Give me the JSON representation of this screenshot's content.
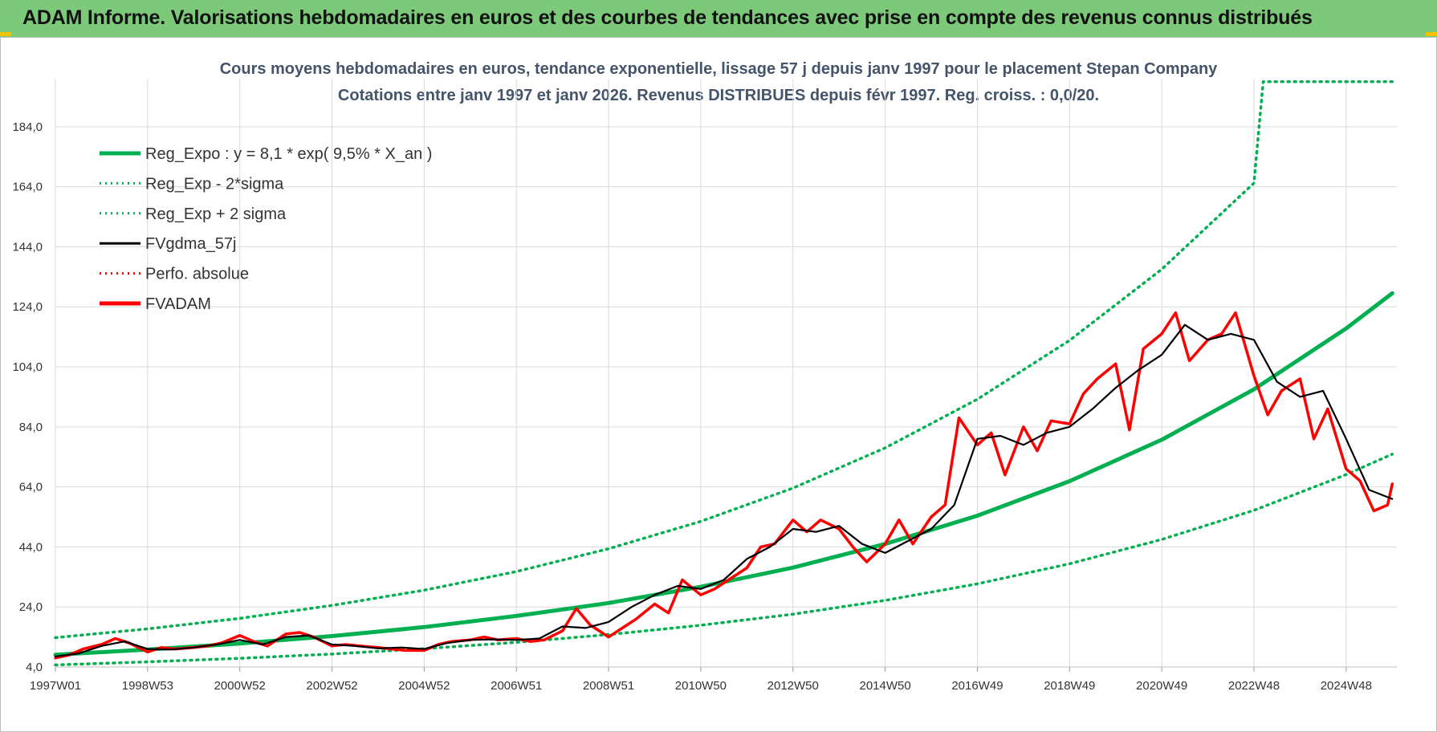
{
  "header": {
    "title": "ADAM Informe. Valorisations hebdomadaires en euros et des courbes de tendances avec prise en compte des revenus connus distribués"
  },
  "colors": {
    "banner": "#7dc97a",
    "trend": "#00b050",
    "fvadam": "#ff0000",
    "fvgdma": "#000000",
    "grid": "#d9d9d9"
  },
  "chart_data": {
    "type": "line",
    "title": "Cours moyens hebdomadaires en euros, tendance exponentielle, lissage 57 j depuis janv 1997  pour le placement Stepan Company",
    "subtitle": "Cotations entre janv 1997 et janv 2026. Revenus DISTRIBUES depuis févr 1997. Reg.  croiss. : 0,0/20.",
    "xlabel": "",
    "ylabel": "",
    "ylim": [
      4,
      200
    ],
    "yticks": [
      "4,0",
      "24,0",
      "44,0",
      "64,0",
      "84,0",
      "104,0",
      "124,0",
      "144,0",
      "164,0",
      "184,0"
    ],
    "yticks_values": [
      4,
      24,
      44,
      64,
      84,
      104,
      124,
      144,
      164,
      184
    ],
    "xlim": [
      1997.0,
      2026.1
    ],
    "xticks": [
      "1997W01",
      "1998W53",
      "2000W52",
      "2002W52",
      "2004W52",
      "2006W51",
      "2008W51",
      "2010W50",
      "2012W50",
      "2014W50",
      "2016W49",
      "2018W49",
      "2020W49",
      "2022W48",
      "2024W48"
    ],
    "xticks_values": [
      1997.0,
      1999.0,
      2001.0,
      2003.0,
      2005.0,
      2007.0,
      2009.0,
      2011.0,
      2013.0,
      2015.0,
      2017.0,
      2019.0,
      2021.0,
      2023.0,
      2025.0
    ],
    "legend": {
      "position": "top-left",
      "entries": [
        {
          "label": "Reg_Expo : y = 8,1 * exp( 9,5% *  X_an )",
          "style": "solid-thick",
          "color": "#00b050"
        },
        {
          "label": "Reg_Exp - 2*sigma",
          "style": "dotted",
          "color": "#00b050"
        },
        {
          "label": "Reg_Exp + 2 sigma",
          "style": "dotted",
          "color": "#00b050"
        },
        {
          "label": "FVgdma_57j",
          "style": "solid",
          "color": "#000000"
        },
        {
          "label": "Perfo. absolue",
          "style": "dotted",
          "color": "#ff0000"
        },
        {
          "label": "FVADAM",
          "style": "solid-thick",
          "color": "#ff0000"
        }
      ]
    },
    "series": [
      {
        "name": "Reg_Expo : y = 8,1 * exp( 9,5% *  X_an )",
        "x": [
          1997.0,
          1999.0,
          2001.0,
          2003.0,
          2005.0,
          2007.0,
          2009.0,
          2011.0,
          2013.0,
          2015.0,
          2017.0,
          2019.0,
          2021.0,
          2023.0,
          2025.0,
          2026.0
        ],
        "values": [
          8.1,
          9.8,
          11.8,
          14.3,
          17.3,
          21.0,
          25.3,
          30.7,
          37.1,
          45.0,
          54.4,
          65.9,
          79.7,
          96.5,
          116.8,
          128.5
        ]
      },
      {
        "name": "Reg_Exp - 2*sigma",
        "x": [
          1997.0,
          1999.0,
          2001.0,
          2003.0,
          2005.0,
          2007.0,
          2009.0,
          2011.0,
          2013.0,
          2015.0,
          2017.0,
          2019.0,
          2021.0,
          2023.0,
          2025.0,
          2026.0
        ],
        "values": [
          4.7,
          5.7,
          6.9,
          8.3,
          10.1,
          12.2,
          14.8,
          17.9,
          21.6,
          26.2,
          31.7,
          38.4,
          46.5,
          56.2,
          68.1,
          74.9
        ]
      },
      {
        "name": "Reg_Exp + 2 sigma",
        "x": [
          1997.0,
          1999.0,
          2001.0,
          2003.0,
          2005.0,
          2007.0,
          2009.0,
          2011.0,
          2013.0,
          2015.0,
          2017.0,
          2019.0,
          2021.0,
          2023.0,
          2023.2,
          2026.1
        ],
        "values": [
          13.8,
          16.7,
          20.2,
          24.5,
          29.6,
          35.8,
          43.4,
          52.5,
          63.6,
          77.0,
          93.2,
          112.8,
          136.5,
          165.2,
          199.0,
          199.0
        ]
      },
      {
        "name": "FVgdma_57j",
        "x": [
          1997.0,
          1997.5,
          1998.0,
          1998.5,
          1999.0,
          1999.5,
          2000.0,
          2000.5,
          2001.0,
          2001.5,
          2002.0,
          2002.5,
          2003.0,
          2003.5,
          2004.0,
          2004.5,
          2005.0,
          2005.5,
          2006.0,
          2006.5,
          2007.0,
          2007.5,
          2008.0,
          2008.5,
          2009.0,
          2009.5,
          2010.0,
          2010.5,
          2011.0,
          2011.5,
          2012.0,
          2012.5,
          2013.0,
          2013.5,
          2014.0,
          2014.5,
          2015.0,
          2015.5,
          2016.0,
          2016.5,
          2017.0,
          2017.5,
          2018.0,
          2018.5,
          2019.0,
          2019.5,
          2020.0,
          2020.5,
          2021.0,
          2021.5,
          2022.0,
          2022.5,
          2023.0,
          2023.5,
          2024.0,
          2024.5,
          2025.0,
          2025.5,
          2026.0
        ],
        "values": [
          7.5,
          8.5,
          11.0,
          12.5,
          10.0,
          9.8,
          10.5,
          11.5,
          13.0,
          11.5,
          14.0,
          14.5,
          11.5,
          11.0,
          10.2,
          10.5,
          10.0,
          12.0,
          13.0,
          13.2,
          13.0,
          13.5,
          17.5,
          17.0,
          19.0,
          24.0,
          28.0,
          31.0,
          30.0,
          33.0,
          40.0,
          44.0,
          50.0,
          49.0,
          51.0,
          45.0,
          42.0,
          46.0,
          50.0,
          58.0,
          80.0,
          81.0,
          78.0,
          82.0,
          84.0,
          90.0,
          97.0,
          103.0,
          108.0,
          118.0,
          113.0,
          115.0,
          113.0,
          99.0,
          94.0,
          96.0,
          80.0,
          63.0,
          60.0
        ]
      },
      {
        "name": "FVADAM",
        "x": [
          1997.0,
          1997.3,
          1997.6,
          1998.0,
          1998.3,
          1998.6,
          1999.0,
          1999.3,
          1999.6,
          2000.0,
          2000.3,
          2000.6,
          2001.0,
          2001.3,
          2001.6,
          2002.0,
          2002.3,
          2002.6,
          2003.0,
          2003.3,
          2003.6,
          2004.0,
          2004.3,
          2004.6,
          2005.0,
          2005.3,
          2005.6,
          2006.0,
          2006.3,
          2006.6,
          2007.0,
          2007.3,
          2007.6,
          2008.0,
          2008.3,
          2008.6,
          2009.0,
          2009.3,
          2009.6,
          2010.0,
          2010.3,
          2010.6,
          2011.0,
          2011.3,
          2011.6,
          2012.0,
          2012.3,
          2012.6,
          2013.0,
          2013.3,
          2013.6,
          2014.0,
          2014.3,
          2014.6,
          2015.0,
          2015.3,
          2015.6,
          2016.0,
          2016.3,
          2016.6,
          2017.0,
          2017.3,
          2017.6,
          2018.0,
          2018.3,
          2018.6,
          2019.0,
          2019.3,
          2019.6,
          2020.0,
          2020.3,
          2020.6,
          2021.0,
          2021.3,
          2021.6,
          2022.0,
          2022.3,
          2022.6,
          2023.0,
          2023.3,
          2023.6,
          2024.0,
          2024.3,
          2024.6,
          2025.0,
          2025.3,
          2025.6,
          2025.9,
          2026.0
        ],
        "values": [
          7.0,
          8.0,
          10.0,
          11.5,
          13.5,
          12.0,
          9.0,
          10.5,
          10.0,
          10.5,
          11.0,
          12.0,
          14.5,
          12.5,
          11.0,
          15.0,
          15.5,
          14.0,
          11.0,
          11.5,
          11.0,
          10.5,
          10.0,
          9.5,
          9.5,
          11.5,
          12.5,
          13.0,
          14.0,
          13.0,
          13.5,
          12.5,
          13.0,
          16.0,
          23.5,
          18.0,
          14.0,
          17.0,
          20.0,
          25.0,
          22.0,
          33.0,
          28.0,
          30.0,
          33.0,
          37.0,
          44.0,
          45.0,
          53.0,
          49.0,
          53.0,
          50.0,
          44.0,
          39.0,
          45.0,
          53.0,
          45.0,
          54.0,
          58.0,
          87.0,
          78.0,
          82.0,
          68.0,
          84.0,
          76.0,
          86.0,
          85.0,
          95.0,
          100.0,
          105.0,
          83.0,
          110.0,
          115.0,
          122.0,
          106.0,
          113.0,
          115.0,
          122.0,
          101.0,
          88.0,
          96.0,
          100.0,
          80.0,
          90.0,
          70.0,
          66.0,
          56.0,
          58.0,
          65.0
        ]
      }
    ]
  }
}
